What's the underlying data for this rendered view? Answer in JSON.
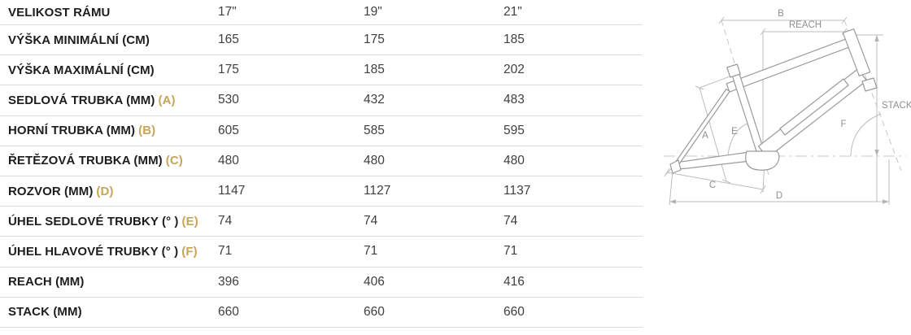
{
  "table": {
    "rows": [
      {
        "label": "VELIKOST RÁMU",
        "letter": "",
        "values": [
          "17\"",
          "19\"",
          "21\""
        ]
      },
      {
        "label": "VÝŠKA MINIMÁLNÍ (CM)",
        "letter": "",
        "values": [
          "165",
          "175",
          "185"
        ]
      },
      {
        "label": "VÝŠKA MAXIMÁLNÍ (CM)",
        "letter": "",
        "values": [
          "175",
          "185",
          "202"
        ]
      },
      {
        "label": "SEDLOVÁ TRUBKA (MM)",
        "letter": "(A)",
        "values": [
          "530",
          "432",
          "483"
        ]
      },
      {
        "label": "HORNÍ TRUBKA (MM)",
        "letter": "(B)",
        "values": [
          "605",
          "585",
          "595"
        ]
      },
      {
        "label": "ŘETĚZOVÁ TRUBKA (MM)",
        "letter": "(C)",
        "values": [
          "480",
          "480",
          "480"
        ]
      },
      {
        "label": "ROZVOR (MM)",
        "letter": "(D)",
        "values": [
          "1147",
          "1127",
          "1137"
        ]
      },
      {
        "label": "ÚHEL SEDLOVÉ TRUBKY (° )",
        "letter": "(E)",
        "values": [
          "74",
          "74",
          "74"
        ]
      },
      {
        "label": "ÚHEL HLAVOVÉ TRUBKY (° )",
        "letter": "(F)",
        "values": [
          "71",
          "71",
          "71"
        ]
      },
      {
        "label": "REACH (MM)",
        "letter": "",
        "values": [
          "396",
          "406",
          "416"
        ]
      },
      {
        "label": "STACK (MM)",
        "letter": "",
        "values": [
          "660",
          "660",
          "660"
        ]
      }
    ]
  },
  "diagram": {
    "labels": {
      "a": "A",
      "b": "B",
      "c": "C",
      "d": "D",
      "e": "E",
      "f": "F",
      "reach": "REACH",
      "stack": "STACK"
    }
  },
  "colors": {
    "accent_gold": "#c6a45a",
    "label_text": "#1d1d1b",
    "value_text": "#3f3f3f",
    "divider": "#dcdcdc",
    "frame_line": "#9a9a9a",
    "dimension_line": "#bdbdbd",
    "diagram_label": "#8f8f8f"
  }
}
